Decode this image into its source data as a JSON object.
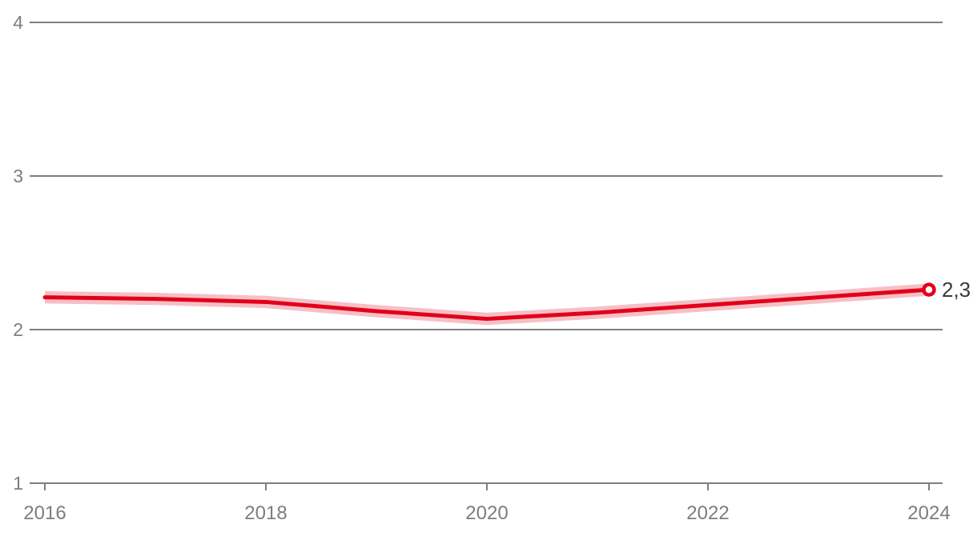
{
  "chart_data": {
    "type": "line",
    "title": "",
    "xlabel": "",
    "ylabel": "",
    "x": [
      2016,
      2017,
      2018,
      2019,
      2020,
      2021,
      2022,
      2023,
      2024
    ],
    "x_ticks": [
      2016,
      2018,
      2020,
      2022,
      2024
    ],
    "x_tick_labels": [
      "2016",
      "2018",
      "2020",
      "2022",
      "2024"
    ],
    "y_ticks": [
      1,
      2,
      3,
      4
    ],
    "y_tick_labels": [
      "1",
      "2",
      "3",
      "4"
    ],
    "xlim": [
      2016,
      2024
    ],
    "ylim": [
      1,
      4
    ],
    "grid": "horizontal",
    "legend": "none",
    "series": [
      {
        "name": "value",
        "values": [
          2.21,
          2.2,
          2.18,
          2.12,
          2.07,
          2.11,
          2.16,
          2.21,
          2.26
        ],
        "band_upper": [
          2.25,
          2.24,
          2.22,
          2.16,
          2.11,
          2.15,
          2.2,
          2.25,
          2.3
        ],
        "band_lower": [
          2.17,
          2.16,
          2.14,
          2.08,
          2.03,
          2.07,
          2.12,
          2.17,
          2.22
        ],
        "end_label": "2,3",
        "end_marker": "open-circle"
      }
    ],
    "colors": {
      "line": "#e2001a",
      "band": "#f6bfc6",
      "gridline": "#7f7f7f",
      "axis": "#7f7f7f",
      "tick_label": "#7d7d7d",
      "end_label_text": "#3a3a3a",
      "marker_fill": "#ffffff"
    }
  }
}
